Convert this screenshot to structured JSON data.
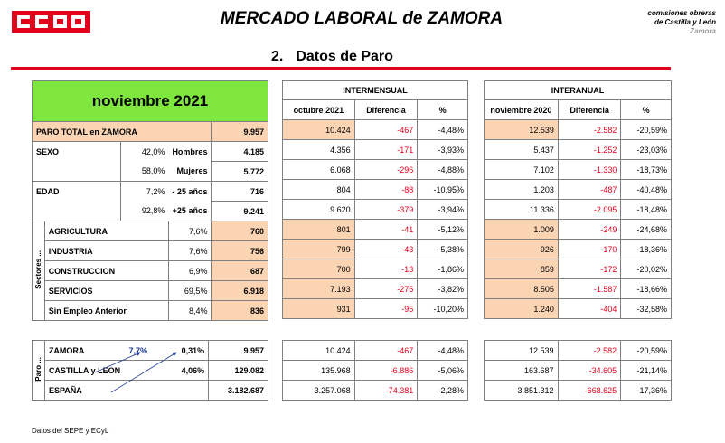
{
  "header": {
    "logo_text": "CCOO",
    "title": "MERCADO LABORAL de ZAMORA",
    "org_line1": "comisiones obreras",
    "org_line2": "de Castilla y León",
    "org_line3": "Zamora"
  },
  "section": {
    "number": "2.",
    "title": "Datos de Paro"
  },
  "period": "noviembre 2021",
  "intermensual": {
    "label": "INTERMENSUAL",
    "col1": "octubre 2021",
    "col2": "Diferencia",
    "col3": "%"
  },
  "interanual": {
    "label": "INTERANUAL",
    "col1": "noviembre 2020",
    "col2": "Diferencia",
    "col3": "%"
  },
  "rows": {
    "total": {
      "label": "PARO TOTAL en ZAMORA",
      "value": "9.957",
      "m_prev": "10.424",
      "m_diff": "-467",
      "m_pct": "-4,48%",
      "y_prev": "12.539",
      "y_diff": "-2.582",
      "y_pct": "-20,59%"
    },
    "sexo_label": "SEXO",
    "hombres": {
      "pct": "42,0%",
      "label": "Hombres",
      "value": "4.185",
      "m_prev": "4.356",
      "m_diff": "-171",
      "m_pct": "-3,93%",
      "y_prev": "5.437",
      "y_diff": "-1.252",
      "y_pct": "-23,03%"
    },
    "mujeres": {
      "pct": "58,0%",
      "label": "Mujeres",
      "value": "5.772",
      "m_prev": "6.068",
      "m_diff": "-296",
      "m_pct": "-4,88%",
      "y_prev": "7.102",
      "y_diff": "-1.330",
      "y_pct": "-18,73%"
    },
    "edad_label": "EDAD",
    "menos25": {
      "pct": "7,2%",
      "label": "- 25 años",
      "value": "716",
      "m_prev": "804",
      "m_diff": "-88",
      "m_pct": "-10,95%",
      "y_prev": "1.203",
      "y_diff": "-487",
      "y_pct": "-40,48%"
    },
    "mas25": {
      "pct": "92,8%",
      "label": "+25 años",
      "value": "9.241",
      "m_prev": "9.620",
      "m_diff": "-379",
      "m_pct": "-3,94%",
      "y_prev": "11.336",
      "y_diff": "-2.095",
      "y_pct": "-18,48%"
    },
    "sectores_label": "Sectores ...",
    "agricultura": {
      "label": "AGRICULTURA",
      "pct": "7,6%",
      "value": "760",
      "m_prev": "801",
      "m_diff": "-41",
      "m_pct": "-5,12%",
      "y_prev": "1.009",
      "y_diff": "-249",
      "y_pct": "-24,68%"
    },
    "industria": {
      "label": "INDUSTRIA",
      "pct": "7,6%",
      "value": "756",
      "m_prev": "799",
      "m_diff": "-43",
      "m_pct": "-5,38%",
      "y_prev": "926",
      "y_diff": "-170",
      "y_pct": "-18,36%"
    },
    "construccion": {
      "label": "CONSTRUCCION",
      "pct": "6,9%",
      "value": "687",
      "m_prev": "700",
      "m_diff": "-13",
      "m_pct": "-1,86%",
      "y_prev": "859",
      "y_diff": "-172",
      "y_pct": "-20,02%"
    },
    "servicios": {
      "label": "SERVICIOS",
      "pct": "69,5%",
      "value": "6.918",
      "m_prev": "7.193",
      "m_diff": "-275",
      "m_pct": "-3,82%",
      "y_prev": "8.505",
      "y_diff": "-1.587",
      "y_pct": "-18,66%"
    },
    "sinempleo": {
      "label": "Sin Empleo Anterior",
      "pct": "8,4%",
      "value": "836",
      "m_prev": "931",
      "m_diff": "-95",
      "m_pct": "-10,20%",
      "y_prev": "1.240",
      "y_diff": "-404",
      "y_pct": "-32,58%"
    }
  },
  "paro": {
    "label": "Paro ...",
    "zamora": {
      "label": "ZAMORA",
      "pct1": "7,7%",
      "pct2": "0,31%",
      "value": "9.957",
      "m_prev": "10.424",
      "m_diff": "-467",
      "m_pct": "-4,48%",
      "y_prev": "12.539",
      "y_diff": "-2.582",
      "y_pct": "-20,59%"
    },
    "cyl": {
      "label": "CASTILLA y LEON",
      "pct2": "4,06%",
      "value": "129.082",
      "m_prev": "135.968",
      "m_diff": "-6.886",
      "m_pct": "-5,06%",
      "y_prev": "163.687",
      "y_diff": "-34.605",
      "y_pct": "-21,14%"
    },
    "espana": {
      "label": "ESPAÑA",
      "value": "3.182.687",
      "m_prev": "3.257.068",
      "m_diff": "-74.381",
      "m_pct": "-2,28%",
      "y_prev": "3.851.312",
      "y_diff": "-668.625",
      "y_pct": "-17,36%"
    }
  },
  "footer": "Datos del SEPE y ECyL",
  "colors": {
    "brand_red": "#e3001b",
    "period_green": "#7fe53f",
    "highlight_peach": "#fbd4b4"
  }
}
